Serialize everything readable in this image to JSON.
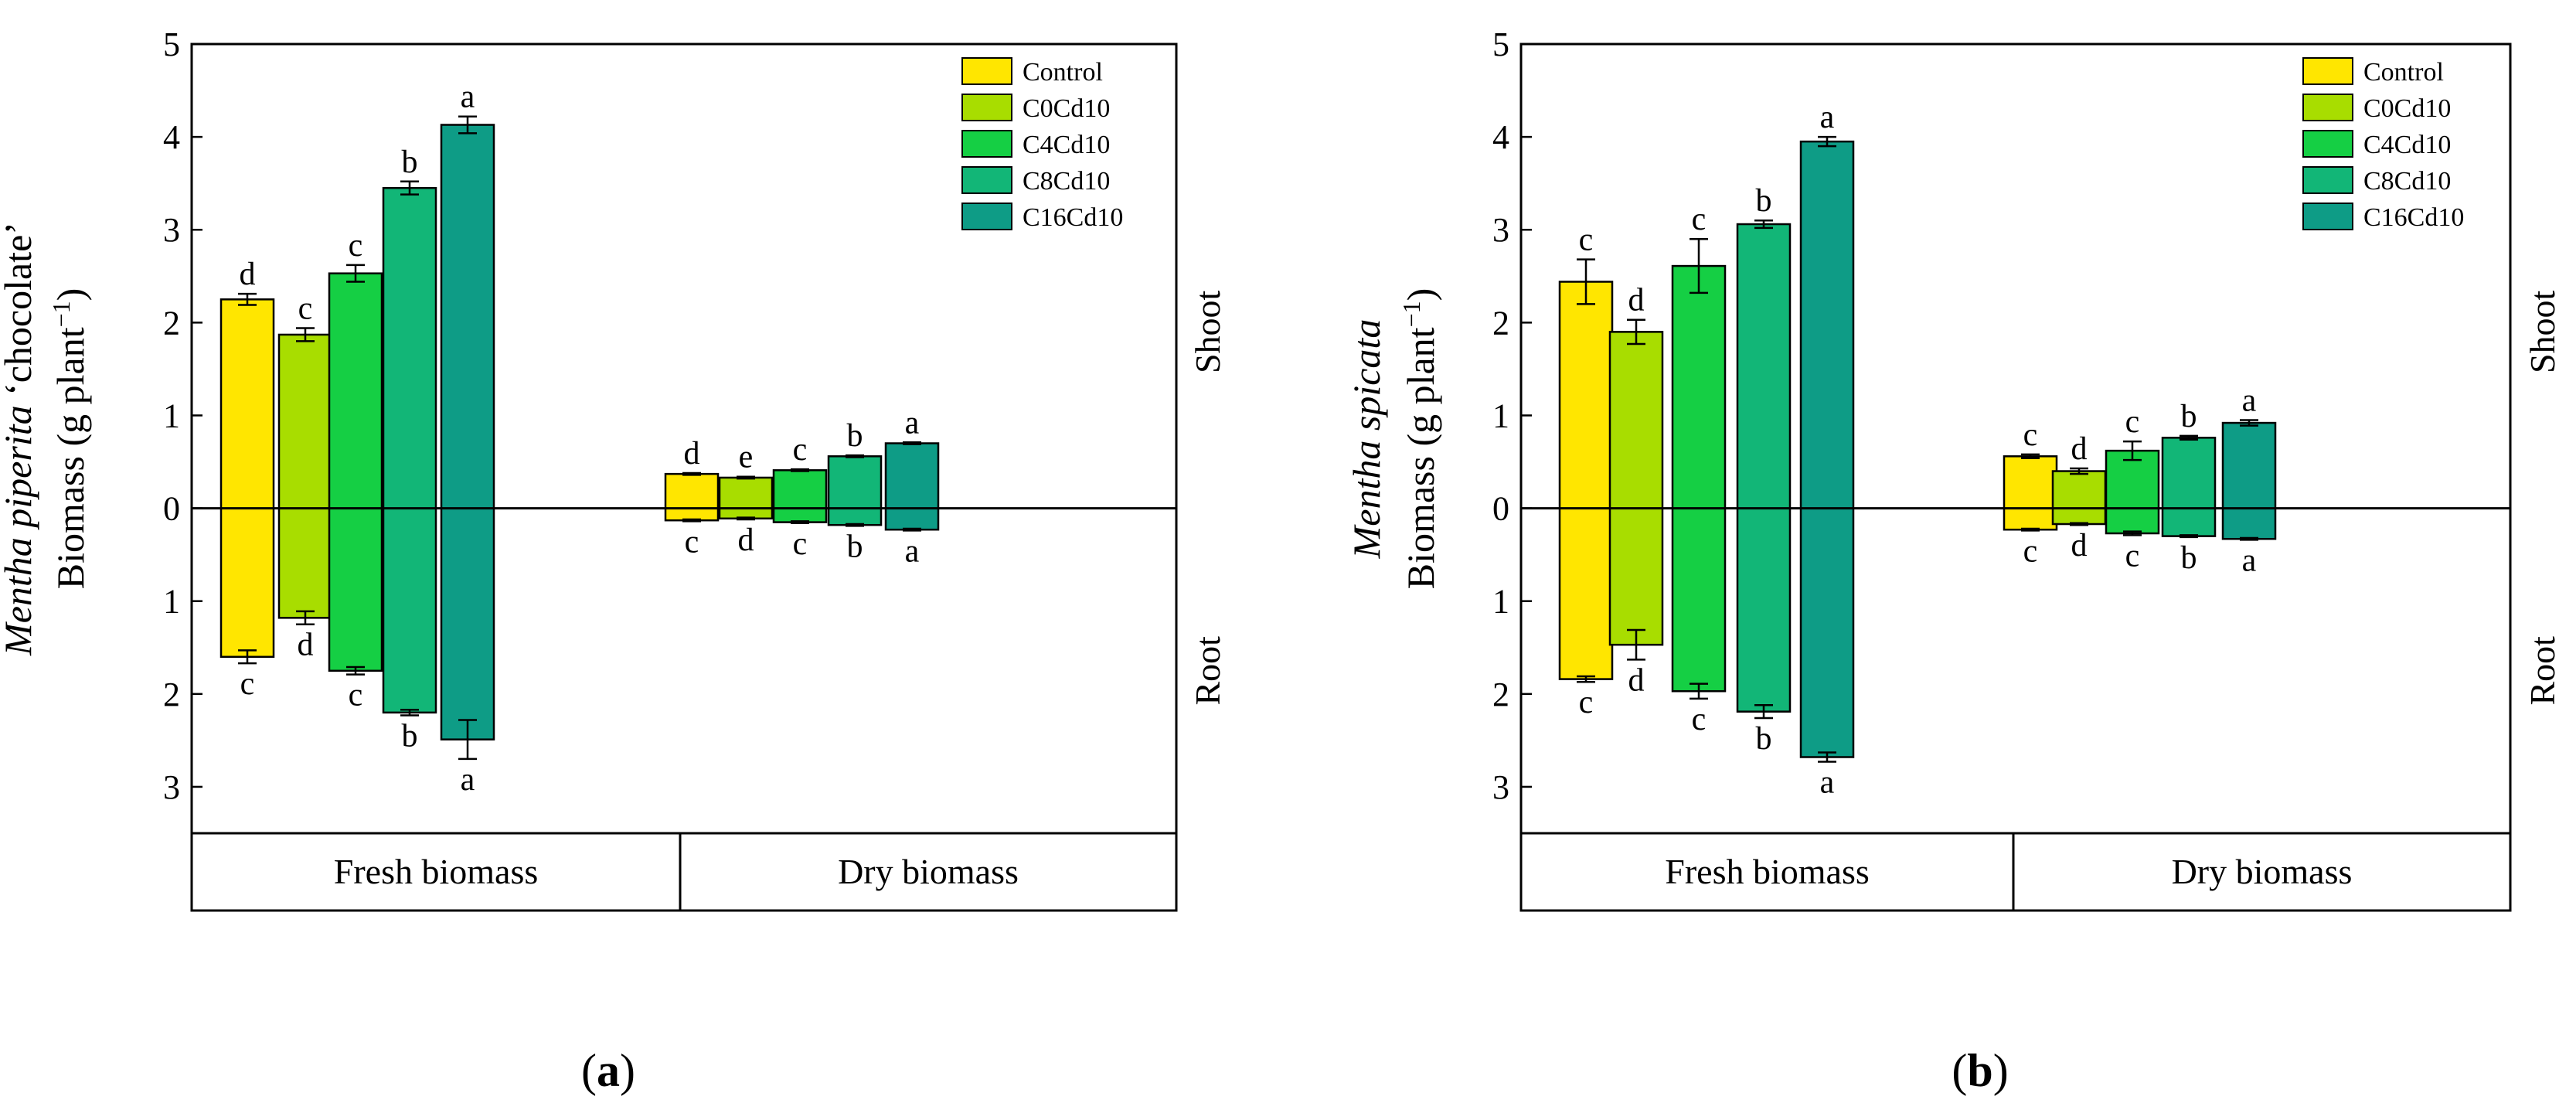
{
  "legend": [
    "Control",
    "C0Cd10",
    "C4Cd10",
    "C8Cd10",
    "C16Cd10"
  ],
  "colors": [
    "#FFE600",
    "#A8DD00",
    "#15CF44",
    "#12B677",
    "#0E9C86"
  ],
  "chart_data": [
    {
      "type": "bar",
      "panel_label": "a",
      "ylabel_species": "Mentha piperita",
      "ylabel_species_suffix": "‘chocolate’",
      "ylabel_main": "Biomass (g plant",
      "ylabel_exp": "−1",
      "ylabel_close": ")",
      "right_top_label": "Shoot",
      "right_bottom_label": "Root",
      "ylim": [
        -3.5,
        5
      ],
      "yticks": [
        5,
        4,
        3,
        2,
        1,
        0,
        -1,
        -2,
        -3
      ],
      "ytick_labels": [
        "5",
        "4",
        "3",
        "2",
        "1",
        "0",
        "1",
        "2",
        "3"
      ],
      "groups": [
        {
          "label": "Fresh biomass",
          "shoot": {
            "values": [
              2.25,
              1.87,
              2.53,
              3.45,
              4.13
            ],
            "errors": [
              0.06,
              0.07,
              0.09,
              0.07,
              0.09
            ],
            "letters": [
              "d",
              "c",
              "c",
              "b",
              "a"
            ]
          },
          "root": {
            "values": [
              1.6,
              1.18,
              1.75,
              2.2,
              2.49
            ],
            "errors": [
              0.07,
              0.07,
              0.04,
              0.03,
              0.21
            ],
            "letters": [
              "c",
              "d",
              "c",
              "b",
              "a"
            ]
          }
        },
        {
          "label": "Dry biomass",
          "shoot": {
            "values": [
              0.37,
              0.33,
              0.41,
              0.56,
              0.7
            ],
            "errors": [
              0.01,
              0.01,
              0.01,
              0.01,
              0.01
            ],
            "letters": [
              "d",
              "e",
              "c",
              "b",
              "a"
            ]
          },
          "root": {
            "values": [
              0.13,
              0.11,
              0.15,
              0.18,
              0.23
            ],
            "errors": [
              0.01,
              0.01,
              0.01,
              0.01,
              0.01
            ],
            "letters": [
              "c",
              "d",
              "c",
              "b",
              "a"
            ]
          }
        }
      ]
    },
    {
      "type": "bar",
      "panel_label": "b",
      "ylabel_species": "Mentha spicata",
      "ylabel_species_suffix": "",
      "ylabel_main": "Biomass (g plant",
      "ylabel_exp": "−1",
      "ylabel_close": ")",
      "right_top_label": "Shoot",
      "right_bottom_label": "Root",
      "ylim": [
        -3.5,
        5
      ],
      "yticks": [
        5,
        4,
        3,
        2,
        1,
        0,
        -1,
        -2,
        -3
      ],
      "ytick_labels": [
        "5",
        "4",
        "3",
        "2",
        "1",
        "0",
        "1",
        "2",
        "3"
      ],
      "groups": [
        {
          "label": "Fresh biomass",
          "shoot": {
            "values": [
              2.44,
              1.9,
              2.61,
              3.06,
              3.95
            ],
            "errors": [
              0.24,
              0.13,
              0.29,
              0.04,
              0.05
            ],
            "letters": [
              "c",
              "d",
              "c",
              "b",
              "a"
            ]
          },
          "root": {
            "values": [
              1.84,
              1.47,
              1.97,
              2.19,
              2.68
            ],
            "errors": [
              0.03,
              0.16,
              0.08,
              0.07,
              0.05
            ],
            "letters": [
              "c",
              "d",
              "c",
              "b",
              "a"
            ]
          }
        },
        {
          "label": "Dry biomass",
          "shoot": {
            "values": [
              0.56,
              0.4,
              0.62,
              0.76,
              0.92
            ],
            "errors": [
              0.02,
              0.03,
              0.1,
              0.02,
              0.03
            ],
            "letters": [
              "c",
              "d",
              "c",
              "b",
              "a"
            ]
          },
          "root": {
            "values": [
              0.23,
              0.17,
              0.27,
              0.3,
              0.33
            ],
            "errors": [
              0.01,
              0.01,
              0.02,
              0.01,
              0.01
            ],
            "letters": [
              "c",
              "d",
              "c",
              "b",
              "a"
            ]
          }
        }
      ]
    }
  ]
}
